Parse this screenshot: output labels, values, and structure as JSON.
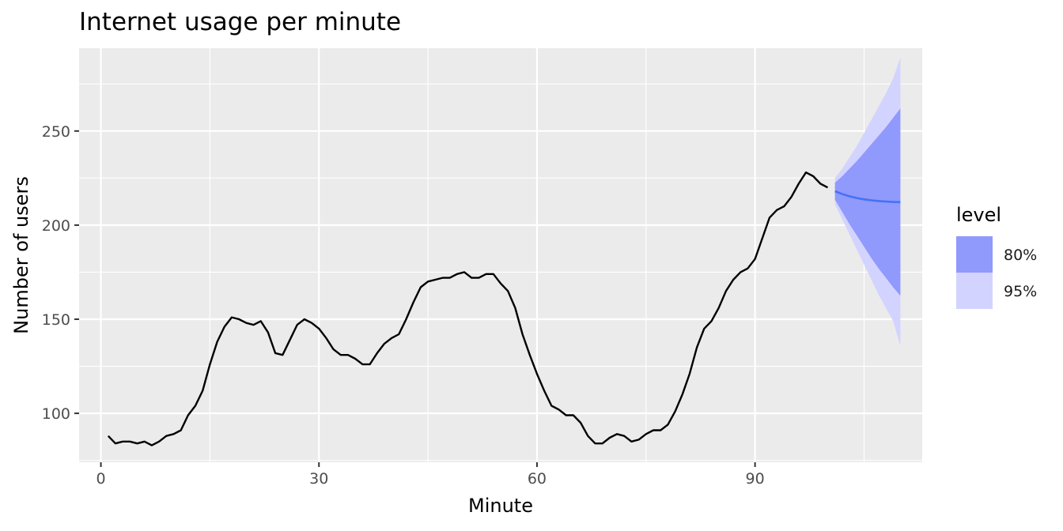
{
  "chart_data": {
    "type": "line",
    "title": "Internet usage per minute",
    "xlabel": "Minute",
    "ylabel": "Number of users",
    "xlim": [
      -3,
      113
    ],
    "ylim": [
      74,
      294
    ],
    "x_ticks": [
      0,
      30,
      60,
      90
    ],
    "x_minor_ticks": [
      15,
      45,
      75,
      105
    ],
    "y_ticks": [
      100,
      150,
      200,
      250
    ],
    "y_minor_ticks": [
      75,
      125,
      175,
      225,
      275
    ],
    "grid": true,
    "legend_position": "right",
    "colors": {
      "panel": "#ebebeb",
      "grid": "#ffffff",
      "series": "#000000",
      "forecast": "#4472f5",
      "level80": "#9099fc",
      "level95": "#d3d3ff"
    },
    "series": [
      {
        "x": [
          1,
          2,
          3,
          4,
          5,
          6,
          7,
          8,
          9,
          10,
          11,
          12,
          13,
          14,
          15,
          16,
          17,
          18,
          19,
          20,
          21,
          22,
          23,
          24,
          25,
          26,
          27,
          28,
          29,
          30,
          31,
          32,
          33,
          34,
          35,
          36,
          37,
          38,
          39,
          40,
          41,
          42,
          43,
          44,
          45,
          46,
          47,
          48,
          49,
          50,
          51,
          52,
          53,
          54,
          55,
          56,
          57,
          58,
          59,
          60,
          61,
          62,
          63,
          64,
          65,
          66,
          67,
          68,
          69,
          70,
          71,
          72,
          73,
          74,
          75,
          76,
          77,
          78,
          79,
          80,
          81,
          82,
          83,
          84,
          85,
          86,
          87,
          88,
          89,
          90,
          91,
          92,
          93,
          94,
          95,
          96,
          97,
          98,
          99,
          100
        ],
        "values": [
          88,
          84,
          85,
          85,
          84,
          85,
          83,
          85,
          88,
          89,
          91,
          99,
          104,
          112,
          126,
          138,
          146,
          151,
          150,
          148,
          147,
          149,
          143,
          132,
          131,
          139,
          147,
          150,
          148,
          145,
          140,
          134,
          131,
          131,
          129,
          126,
          126,
          132,
          137,
          140,
          142,
          150,
          159,
          167,
          170,
          171,
          172,
          172,
          174,
          175,
          172,
          172,
          174,
          174,
          169,
          165,
          156,
          142,
          131,
          121,
          112,
          104,
          102,
          99,
          99,
          95,
          88,
          84,
          84,
          87,
          89,
          88,
          85,
          86,
          89,
          91,
          91,
          94,
          101,
          110,
          121,
          135,
          145,
          149,
          156,
          165,
          171,
          175,
          177,
          182,
          193,
          204,
          208,
          210,
          215,
          222,
          228,
          226,
          222,
          220
        ]
      }
    ],
    "forecast": {
      "x": [
        101,
        102,
        103,
        104,
        105,
        106,
        107,
        108,
        109,
        110
      ],
      "mean": [
        218,
        216.5,
        215.3,
        214.4,
        213.7,
        213.2,
        212.8,
        212.5,
        212.3,
        212.2
      ],
      "lo80": [
        213.5,
        207,
        200.5,
        194.5,
        188.5,
        182.5,
        177,
        172,
        167,
        162.5
      ],
      "hi80": [
        222.5,
        226,
        230,
        234,
        238.5,
        243,
        247.5,
        252,
        257,
        262
      ],
      "lo95": [
        211,
        203,
        195,
        187,
        179,
        171,
        163,
        156,
        149,
        136
      ],
      "hi95": [
        225,
        230,
        236,
        242,
        249,
        256,
        263,
        270,
        278,
        289
      ]
    },
    "legend": {
      "title": "level",
      "items": [
        {
          "label": "80%",
          "color": "#9099fc"
        },
        {
          "label": "95%",
          "color": "#d3d3ff"
        }
      ]
    }
  }
}
